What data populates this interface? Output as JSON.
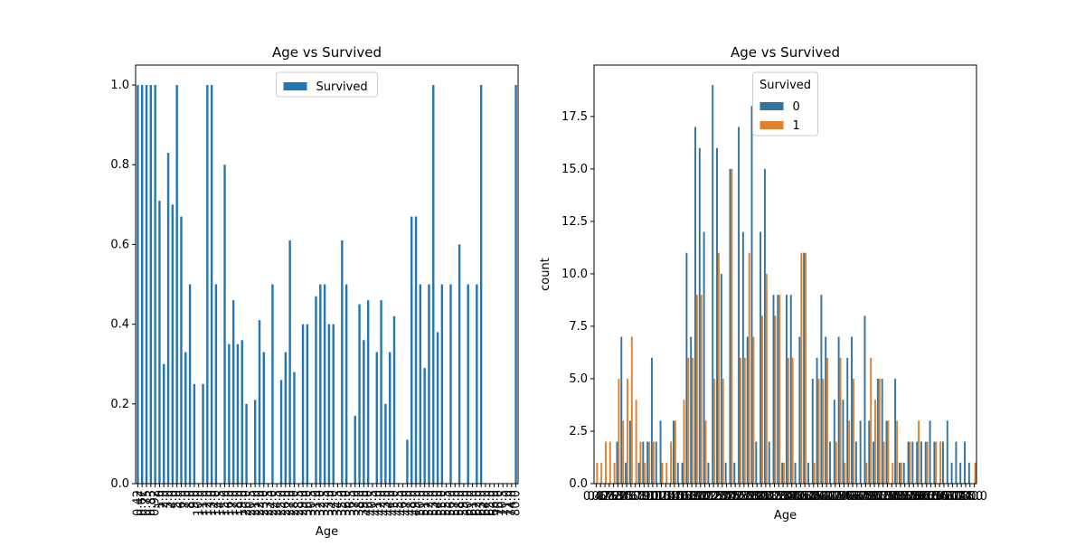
{
  "chart_data": [
    {
      "type": "bar",
      "title": "Age vs Survived",
      "x_label": "Age",
      "legend": "upper center",
      "categories": [
        "0.42",
        "0.67",
        "0.75",
        "0.83",
        "0.92",
        "1.0",
        "2.0",
        "3.0",
        "4.0",
        "5.0",
        "6.0",
        "7.0",
        "8.0",
        "9.0",
        "10.0",
        "11.0",
        "12.0",
        "13.0",
        "14.0",
        "14.5",
        "15.0",
        "16.0",
        "17.0",
        "18.0",
        "19.0",
        "20.0",
        "20.5",
        "21.0",
        "22.0",
        "23.0",
        "23.5",
        "24.0",
        "24.5",
        "25.0",
        "26.0",
        "27.0",
        "28.0",
        "28.5",
        "29.0",
        "30.0",
        "30.5",
        "31.0",
        "32.0",
        "32.5",
        "33.0",
        "34.0",
        "34.5",
        "35.0",
        "36.0",
        "36.5",
        "37.0",
        "38.0",
        "39.0",
        "40.0",
        "40.5",
        "41.0",
        "42.0",
        "43.0",
        "44.0",
        "45.0",
        "45.5",
        "46.0",
        "47.0",
        "48.0",
        "49.0",
        "50.0",
        "51.0",
        "52.0",
        "53.0",
        "54.0",
        "55.0",
        "55.5",
        "56.0",
        "57.0",
        "58.0",
        "59.0",
        "60.0",
        "61.0",
        "62.0",
        "63.0",
        "64.0",
        "65.0",
        "66.0",
        "70.0",
        "70.5",
        "71.0",
        "74.0",
        "80.0"
      ],
      "series": [
        {
          "name": "Survived",
          "color": "#1f77b4",
          "values": [
            1,
            1,
            1,
            1,
            1,
            0.71,
            0.3,
            0.83,
            0.7,
            1,
            0.67,
            0.33,
            0.5,
            0.25,
            0,
            0.25,
            1,
            1,
            0.5,
            0,
            0.8,
            0.35,
            0.46,
            0.35,
            0.36,
            0.2,
            0,
            0.21,
            0.41,
            0.33,
            0,
            0.5,
            0,
            0.26,
            0.33,
            0.61,
            0.28,
            0,
            0.4,
            0.4,
            0,
            0.47,
            0.5,
            0.5,
            0.4,
            0.4,
            0,
            0.61,
            0.5,
            0,
            0.17,
            0.45,
            0.36,
            0.46,
            0,
            0.33,
            0.46,
            0.2,
            0.33,
            0.42,
            0,
            0,
            0.11,
            0.67,
            0.67,
            0.5,
            0.29,
            0.5,
            1,
            0.38,
            0.5,
            0,
            0.5,
            0,
            0.6,
            0,
            0.5,
            0,
            0.5,
            1,
            0,
            0,
            0,
            0,
            0,
            0,
            0,
            1
          ]
        }
      ],
      "ylim": [
        0,
        1.05
      ],
      "yticks": [
        {
          "value": 0,
          "label": "0.0"
        },
        {
          "value": 0.2,
          "label": "0.2"
        },
        {
          "value": 0.4,
          "label": "0.4"
        },
        {
          "value": 0.6,
          "label": "0.6"
        },
        {
          "value": 0.8,
          "label": "0.8"
        },
        {
          "value": 1,
          "label": "1.0"
        }
      ]
    },
    {
      "type": "bar",
      "title": "Age vs Survived",
      "x_label": "Age",
      "y_label": "count",
      "legend": "upper center",
      "legend_title": "Survived",
      "categories": [
        "0.42",
        "0.67",
        "0.75",
        "0.83",
        "0.92",
        "1.0",
        "2.0",
        "3.0",
        "4.0",
        "5.0",
        "6.0",
        "7.0",
        "8.0",
        "9.0",
        "10.0",
        "11.0",
        "12.0",
        "13.0",
        "14.0",
        "14.5",
        "15.0",
        "16.0",
        "17.0",
        "18.0",
        "19.0",
        "20.0",
        "20.5",
        "21.0",
        "22.0",
        "23.0",
        "23.5",
        "24.0",
        "24.5",
        "25.0",
        "26.0",
        "27.0",
        "28.0",
        "28.5",
        "29.0",
        "30.0",
        "30.5",
        "31.0",
        "32.0",
        "32.5",
        "33.0",
        "34.0",
        "34.5",
        "35.0",
        "36.0",
        "36.5",
        "37.0",
        "38.0",
        "39.0",
        "40.0",
        "40.5",
        "41.0",
        "42.0",
        "43.0",
        "44.0",
        "45.0",
        "45.5",
        "46.0",
        "47.0",
        "48.0",
        "49.0",
        "50.0",
        "51.0",
        "52.0",
        "53.0",
        "54.0",
        "55.0",
        "55.5",
        "56.0",
        "57.0",
        "58.0",
        "59.0",
        "60.0",
        "61.0",
        "62.0",
        "63.0",
        "64.0",
        "65.0",
        "66.0",
        "70.0",
        "70.5",
        "71.0",
        "74.0",
        "80.0"
      ],
      "series": [
        {
          "name": "0",
          "color": "#3274a1",
          "values": [
            0,
            0,
            0,
            0,
            0,
            2,
            7,
            1,
            3,
            0,
            1,
            2,
            2,
            6,
            2,
            3,
            0,
            0,
            3,
            1,
            1,
            11,
            7,
            17,
            16,
            12,
            1,
            19,
            16,
            10,
            1,
            15,
            1,
            17,
            12,
            7,
            18,
            2,
            12,
            15,
            2,
            9,
            9,
            1,
            9,
            9,
            1,
            7,
            11,
            1,
            5,
            6,
            9,
            7,
            2,
            4,
            7,
            4,
            6,
            7,
            2,
            3,
            8,
            3,
            2,
            5,
            5,
            3,
            0,
            5,
            1,
            1,
            2,
            2,
            2,
            2,
            2,
            3,
            2,
            0,
            2,
            3,
            1,
            2,
            1,
            2,
            1,
            0
          ]
        },
        {
          "name": "1",
          "color": "#e1812c",
          "values": [
            1,
            1,
            2,
            2,
            1,
            5,
            3,
            5,
            7,
            4,
            2,
            1,
            2,
            2,
            0,
            1,
            1,
            2,
            3,
            0,
            4,
            6,
            6,
            9,
            9,
            3,
            0,
            5,
            11,
            5,
            0,
            15,
            0,
            6,
            6,
            11,
            7,
            0,
            8,
            10,
            0,
            8,
            9,
            1,
            6,
            6,
            0,
            11,
            11,
            0,
            1,
            5,
            5,
            6,
            0,
            2,
            6,
            1,
            3,
            5,
            0,
            0,
            1,
            6,
            4,
            5,
            2,
            3,
            1,
            3,
            1,
            0,
            2,
            0,
            3,
            0,
            2,
            0,
            2,
            2,
            0,
            0,
            0,
            0,
            0,
            0,
            0,
            1
          ]
        }
      ],
      "ylim": [
        0,
        19.95
      ],
      "yticks": [
        {
          "value": 0,
          "label": "0.0"
        },
        2.5,
        {
          "value": 5,
          "label": "5.0"
        },
        7.5,
        {
          "value": 10,
          "label": "10.0"
        },
        12.5,
        {
          "value": 15,
          "label": "15.0"
        },
        17.5
      ]
    }
  ]
}
